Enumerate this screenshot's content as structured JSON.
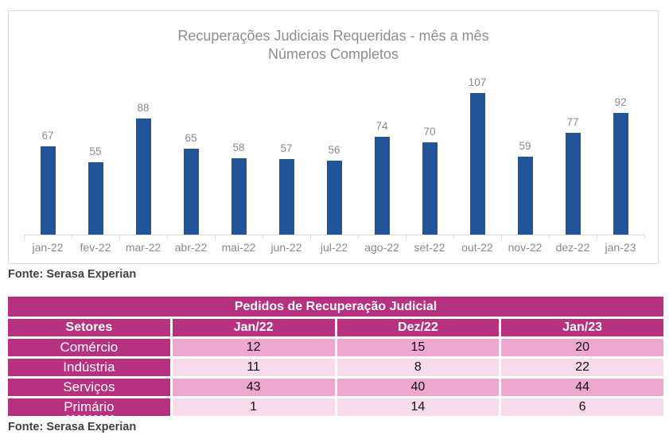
{
  "chart_data": {
    "type": "bar",
    "title": "Recuperações Judiciais Requeridas - mês a mês",
    "subtitle": "Números Completos",
    "categories": [
      "jan-22",
      "fev-22",
      "mar-22",
      "abr-22",
      "mai-22",
      "jun-22",
      "jul-22",
      "ago-22",
      "set-22",
      "out-22",
      "nov-22",
      "dez-22",
      "jan-23"
    ],
    "values": [
      67,
      55,
      88,
      65,
      58,
      57,
      56,
      74,
      70,
      107,
      59,
      77,
      92
    ],
    "xlabel": "",
    "ylabel": "",
    "ylim": [
      0,
      110
    ],
    "grid": false,
    "legend": false,
    "data_labels": true,
    "bar_color": "#215499",
    "text_color": "#8a8a8a",
    "axis_color": "#d9d9d9"
  },
  "chart_source": "Fonte: Serasa Experian",
  "table": {
    "title": "Pedidos de Recuperação Judicial",
    "columns": [
      "Setores",
      "Jan/22",
      "Dez/22",
      "Jan/23"
    ],
    "rows": [
      {
        "sector": "Comércio",
        "values": [
          "12",
          "15",
          "20"
        ],
        "spellcheck_underline": false
      },
      {
        "sector": "Indústria",
        "values": [
          "11",
          "8",
          "22"
        ],
        "spellcheck_underline": false
      },
      {
        "sector": "Serviços",
        "values": [
          "43",
          "40",
          "44"
        ],
        "spellcheck_underline": false
      },
      {
        "sector": "Primário",
        "values": [
          "1",
          "14",
          "6"
        ],
        "spellcheck_underline": true
      }
    ],
    "colors": {
      "header_bg": "#b73181",
      "row_dark": "#eea8cf",
      "row_light": "#f7dbeb"
    }
  },
  "table_source": "Fonte: Serasa Experian"
}
